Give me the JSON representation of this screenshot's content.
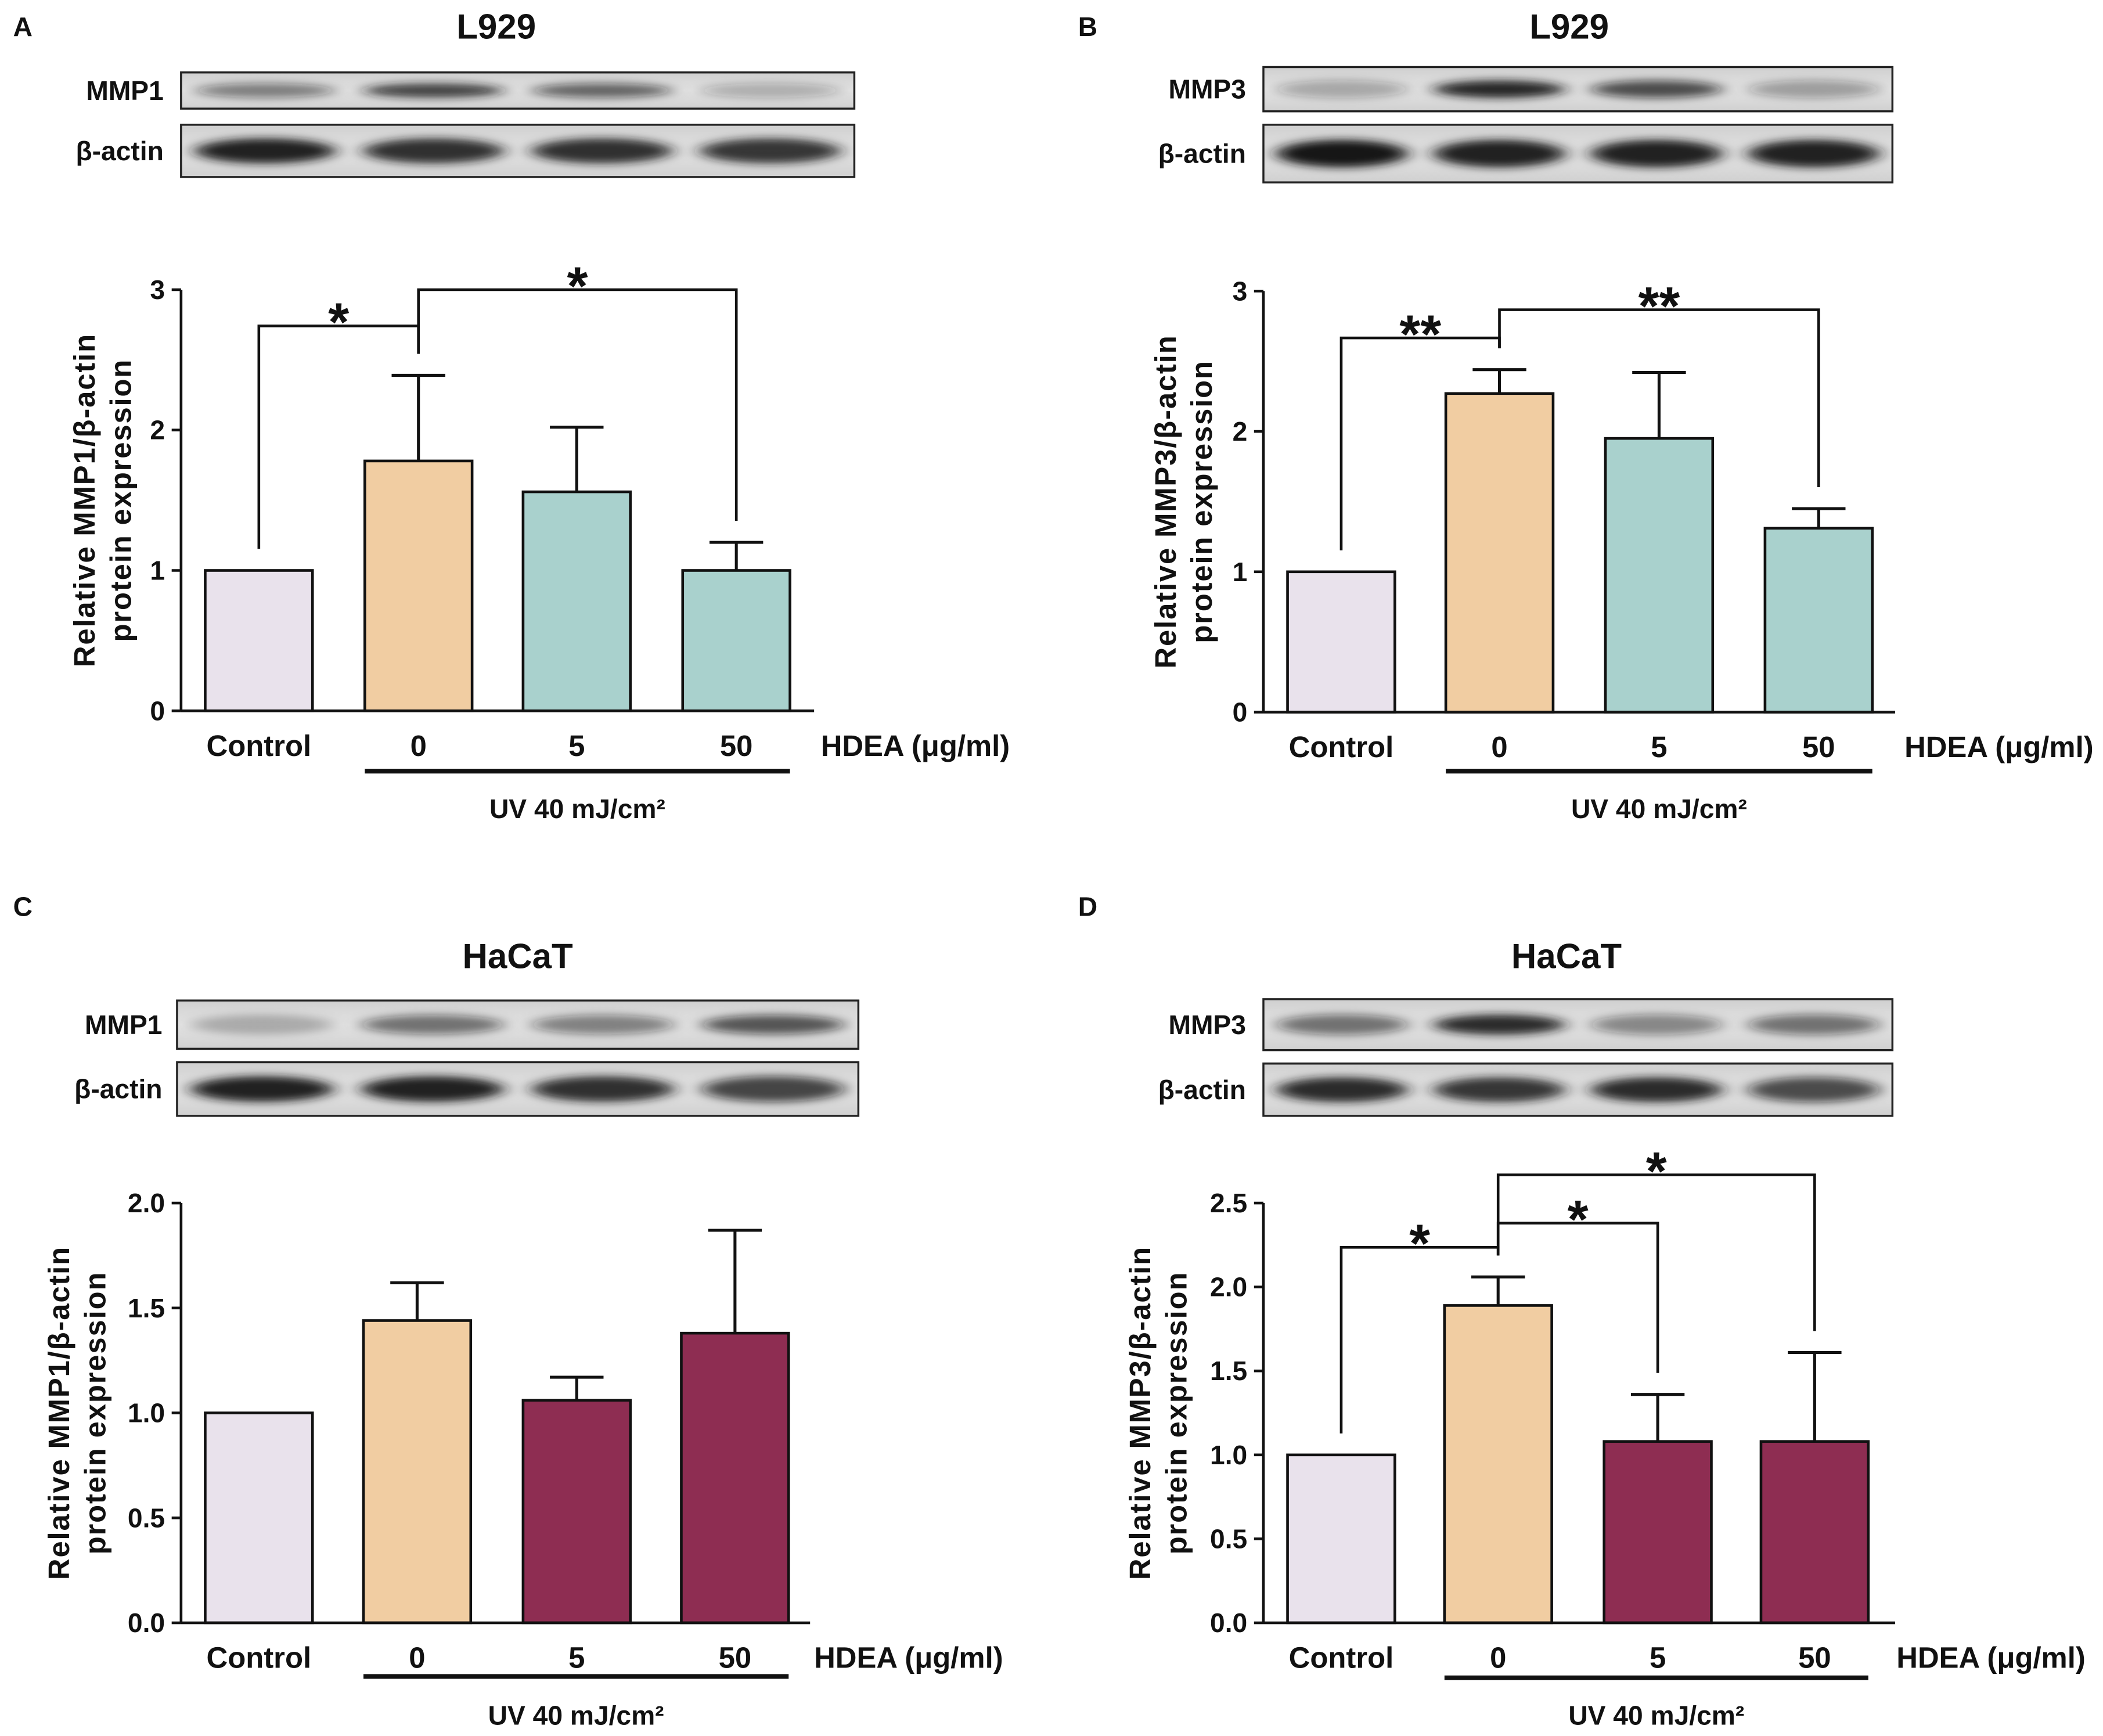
{
  "panels": [
    {
      "letter": "A",
      "blots": [
        {
          "label": "MMP1",
          "bands": [
            0.5,
            0.8,
            0.62,
            0.28
          ]
        },
        {
          "label": "β-actin",
          "bands": [
            0.95,
            0.88,
            0.88,
            0.85
          ]
        }
      ]
    },
    {
      "letter": "B",
      "blots": [
        {
          "label": "MMP3",
          "bands": [
            0.3,
            0.92,
            0.72,
            0.35
          ]
        },
        {
          "label": "β-actin",
          "bands": [
            1.0,
            0.95,
            0.95,
            0.95
          ]
        }
      ]
    },
    {
      "letter": "C",
      "blots": [
        {
          "label": "MMP1",
          "bands": [
            0.25,
            0.55,
            0.48,
            0.68
          ]
        },
        {
          "label": "β-actin",
          "bands": [
            0.95,
            0.95,
            0.88,
            0.75
          ]
        }
      ]
    },
    {
      "letter": "D",
      "blots": [
        {
          "label": "MMP3",
          "bands": [
            0.55,
            0.9,
            0.45,
            0.55
          ]
        },
        {
          "label": "β-actin",
          "bands": [
            0.9,
            0.85,
            0.9,
            0.72
          ]
        }
      ]
    }
  ],
  "chart_data": [
    {
      "type": "bar",
      "title": "L929",
      "categories": [
        "Control",
        "0",
        "5",
        "50"
      ],
      "values": [
        1.0,
        1.78,
        1.56,
        1.0
      ],
      "error_top": [
        null,
        2.39,
        2.02,
        1.2
      ],
      "colors": [
        "#e9e2ec",
        "#f1cda2",
        "#a9d1cd",
        "#a9d1cd"
      ],
      "ylabel": [
        "Relative MMP1/β-actin",
        "protein expression"
      ],
      "ylim": [
        0,
        3
      ],
      "yticks": [
        0,
        1,
        2,
        3
      ],
      "ytick_labels": [
        "0",
        "1",
        "2",
        "3"
      ],
      "xlabel": "HDEA (μg/ml)",
      "group": {
        "label": "UV 40 mJ/cm²",
        "from": 1,
        "to": 3
      },
      "significance": [
        {
          "from": 0,
          "to": 1,
          "label": "*"
        },
        {
          "from": 1,
          "to": 3,
          "label": "*"
        }
      ]
    },
    {
      "type": "bar",
      "title": "L929",
      "categories": [
        "Control",
        "0",
        "5",
        "50"
      ],
      "values": [
        1.0,
        2.27,
        1.95,
        1.31
      ],
      "error_top": [
        null,
        2.44,
        2.42,
        1.45
      ],
      "colors": [
        "#e9e2ec",
        "#f1cda2",
        "#a9d1cd",
        "#a9d1cd"
      ],
      "ylabel": [
        "Relative MMP3/β-actin",
        "protein expression"
      ],
      "ylim": [
        0,
        3
      ],
      "yticks": [
        0,
        1,
        2,
        3
      ],
      "ytick_labels": [
        "0",
        "1",
        "2",
        "3"
      ],
      "xlabel": "HDEA (μg/ml)",
      "group": {
        "label": "UV 40 mJ/cm²",
        "from": 1,
        "to": 3
      },
      "significance": [
        {
          "from": 0,
          "to": 1,
          "label": "**"
        },
        {
          "from": 1,
          "to": 3,
          "label": "**"
        }
      ]
    },
    {
      "type": "bar",
      "title": "HaCaT",
      "categories": [
        "Control",
        "0",
        "5",
        "50"
      ],
      "values": [
        1.0,
        1.44,
        1.06,
        1.38
      ],
      "error_top": [
        null,
        1.62,
        1.17,
        1.87
      ],
      "colors": [
        "#e9e2ec",
        "#f1cda2",
        "#8e2d52",
        "#8e2d52"
      ],
      "ylabel": [
        "Relative MMP1/β-actin",
        "protein expression"
      ],
      "ylim": [
        0,
        2
      ],
      "yticks": [
        0,
        0.5,
        1,
        1.5,
        2
      ],
      "ytick_labels": [
        "0.0",
        "0.5",
        "1.0",
        "1.5",
        "2.0"
      ],
      "xlabel": "HDEA (μg/ml)",
      "group": {
        "label": "UV 40 mJ/cm²",
        "from": 1,
        "to": 3
      },
      "significance": []
    },
    {
      "type": "bar",
      "title": "HaCaT",
      "categories": [
        "Control",
        "0",
        "5",
        "50"
      ],
      "values": [
        1.0,
        1.89,
        1.08,
        1.08
      ],
      "error_top": [
        null,
        2.06,
        1.36,
        1.61
      ],
      "colors": [
        "#e9e2ec",
        "#f1cda2",
        "#8e2d52",
        "#8e2d52"
      ],
      "ylabel": [
        "Relative MMP3/β-actin",
        "protein expression"
      ],
      "ylim": [
        0,
        2.5
      ],
      "yticks": [
        0,
        0.5,
        1,
        1.5,
        2,
        2.5
      ],
      "ytick_labels": [
        "0.0",
        "0.5",
        "1.0",
        "1.5",
        "2.0",
        "2.5"
      ],
      "xlabel": "HDEA (μg/ml)",
      "group": {
        "label": "UV 40 mJ/cm²",
        "from": 1,
        "to": 3
      },
      "significance": [
        {
          "from": 0,
          "to": 1,
          "label": "*"
        },
        {
          "from": 1,
          "to": 2,
          "label": "*"
        },
        {
          "from": 1,
          "to": 3,
          "label": "*"
        }
      ]
    }
  ]
}
